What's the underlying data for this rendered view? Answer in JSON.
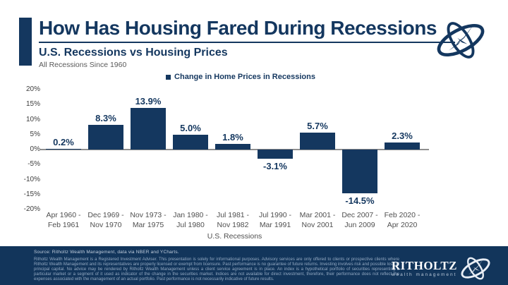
{
  "header": {
    "title": "How Has Housing Fared During Recessions",
    "subtitle": "U.S. Recessions vs Housing Prices",
    "subtitle2": "All Recessions Since 1960"
  },
  "legend": {
    "label": "Change in Home Prices in Recessions"
  },
  "chart_data": {
    "type": "bar",
    "title": "U.S. Recessions vs Housing Prices",
    "subtitle": "All Recessions Since 1960",
    "categories": [
      [
        "Apr 1960 -",
        "Feb 1961"
      ],
      [
        "Dec 1969 -",
        "Nov 1970"
      ],
      [
        "Nov 1973 -",
        "Mar 1975"
      ],
      [
        "Jan 1980 -",
        "Jul 1980"
      ],
      [
        "Jul 1981 -",
        "Nov 1982"
      ],
      [
        "Jul 1990 -",
        "Mar 1991"
      ],
      [
        "Mar 2001 -",
        "Nov 2001"
      ],
      [
        "Dec 2007 -",
        "Jun 2009"
      ],
      [
        "Feb 2020 -",
        "Apr 2020"
      ]
    ],
    "values": [
      0.2,
      8.3,
      13.9,
      5.0,
      1.8,
      -3.1,
      5.7,
      -14.5,
      2.3
    ],
    "bar_labels": [
      "0.2%",
      "8.3%",
      "13.9%",
      "5.0%",
      "1.8%",
      "-3.1%",
      "5.7%",
      "-14.5%",
      "2.3%"
    ],
    "xlabel": "U.S. Recessions",
    "ylabel": "",
    "y_ticks": [
      "20%",
      "15%",
      "10%",
      "5%",
      "0%",
      "-5%",
      "-10%",
      "-15%",
      "-20%"
    ],
    "ylim": [
      -20,
      20
    ],
    "grid": false,
    "legend": [
      "Change in Home Prices in Recessions"
    ],
    "legend_position": "top",
    "bar_color": "#14375f"
  },
  "colors": {
    "navy": "#14375f",
    "footer_bg": "#12355b",
    "zero_line": "#8f8f8f"
  },
  "footer": {
    "source": "Source: Ritholtz Wealth Management, data via NBER and YCharts.",
    "disclaimer": "Ritholtz Wealth Management is a Registered Investment Adviser. This presentation is solely for informational purposes. Advisory services are only offered to clients or prospective clients where Ritholtz Wealth Management and its representatives are properly licensed or exempt from licensure. Past performance is no guarantee of future returns. Investing involves risk and possible loss of principal capital. No advice may be rendered by Ritholtz Wealth Management unless a client service agreement is in place. An index is a hypothetical portfolio of securities representing a particular market or a segment of it used as indicator of the change in the securities market. Indices are not available for direct investment, therefore, their performance does not reflect the expenses associated with the management of an actual portfolio. Past performance is not necessarily indicative of future results.",
    "brand": "RITHOLTZ",
    "brand_sub": "wealth management"
  }
}
